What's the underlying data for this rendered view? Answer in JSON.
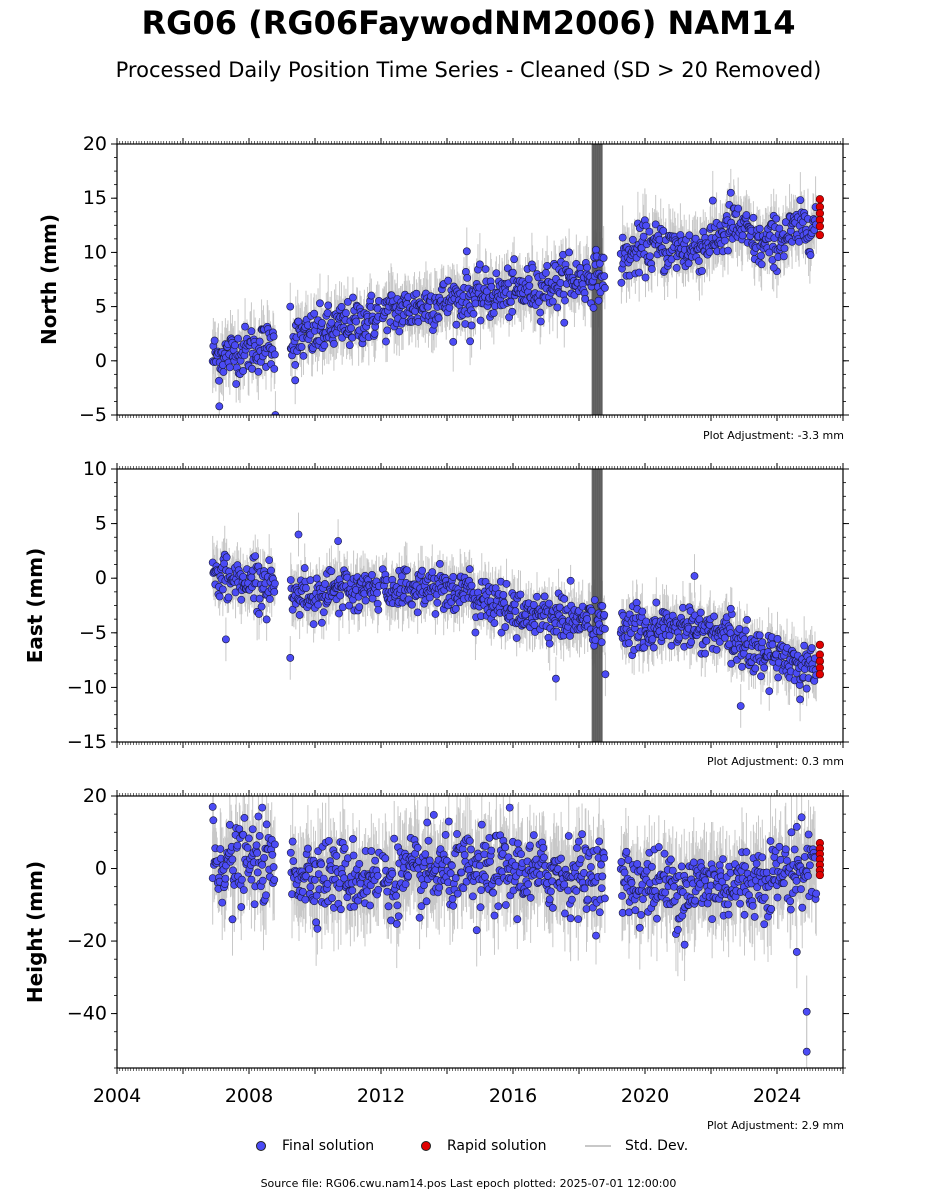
{
  "title": "RG06 (RG06FaywodNM2006) NAM14",
  "subtitle": "Processed Daily Position Time Series - Cleaned (SD > 20 Removed)",
  "legend": {
    "final": "Final solution",
    "rapid": "Rapid solution",
    "std": "Std. Dev."
  },
  "source": "Source file: RG06.cwu.nam14.pos  Last epoch plotted: 2025-07-01 12:00:00",
  "colors": {
    "final": "#4b4bf5",
    "rapid": "#e00000",
    "std_dev": "#c8c8c8",
    "dense_band": "#555555"
  },
  "chart_data": [
    {
      "type": "scatter",
      "ylabel": "North (mm)",
      "adjustment": "Plot Adjustment: -3.3 mm",
      "xlim": [
        2004,
        2026
      ],
      "ylim": [
        -5,
        20
      ],
      "yticks": [
        -5,
        0,
        5,
        10,
        15,
        20
      ],
      "xticks": [
        2004,
        2008,
        2012,
        2016,
        2020,
        2024
      ],
      "grid": false,
      "trend": [
        [
          2006.9,
          0.3
        ],
        [
          2008.8,
          1.5
        ],
        [
          2009.3,
          1.8
        ],
        [
          2012.0,
          4.2
        ],
        [
          2014.0,
          5.5
        ],
        [
          2016.0,
          6.3
        ],
        [
          2018.8,
          8.0
        ],
        [
          2019.3,
          9.2
        ],
        [
          2020.0,
          10.5
        ],
        [
          2021.5,
          10.2
        ],
        [
          2022.8,
          12.5
        ],
        [
          2023.5,
          10.5
        ],
        [
          2025.2,
          12.8
        ]
      ],
      "scatter_sd": 1.1,
      "gaps": [
        [
          2008.8,
          2009.25
        ],
        [
          2011.95,
          2012.05
        ],
        [
          2018.8,
          2019.25
        ]
      ],
      "outliers": [
        [
          2007.1,
          -4.2
        ],
        [
          2008.8,
          -5.0
        ],
        [
          2009.25,
          5.0
        ],
        [
          2009.4,
          -1.8
        ],
        [
          2014.6,
          10.1
        ],
        [
          2014.7,
          1.8
        ],
        [
          2022.6,
          15.5
        ],
        [
          2017.7,
          10.0
        ],
        [
          2023.9,
          8.6
        ]
      ],
      "rapid": [
        [
          2025.3,
          14.9
        ],
        [
          2025.3,
          14.2
        ],
        [
          2025.3,
          13.6
        ],
        [
          2025.3,
          13.0
        ],
        [
          2025.3,
          12.4
        ],
        [
          2025.3,
          11.6
        ]
      ]
    },
    {
      "type": "scatter",
      "ylabel": "East (mm)",
      "adjustment": "Plot Adjustment: 0.3 mm",
      "xlim": [
        2004,
        2026
      ],
      "ylim": [
        -15,
        10
      ],
      "yticks": [
        -15,
        -10,
        -5,
        0,
        5,
        10
      ],
      "xticks": [
        2004,
        2008,
        2012,
        2016,
        2020,
        2024
      ],
      "grid": false,
      "trend": [
        [
          2006.9,
          0.2
        ],
        [
          2008.8,
          -0.5
        ],
        [
          2009.3,
          -1.5
        ],
        [
          2012.0,
          -1.0
        ],
        [
          2014.0,
          -0.8
        ],
        [
          2016.0,
          -3.0
        ],
        [
          2018.8,
          -4.2
        ],
        [
          2019.3,
          -4.8
        ],
        [
          2021.0,
          -4.5
        ],
        [
          2022.0,
          -5.0
        ],
        [
          2023.5,
          -6.8
        ],
        [
          2025.2,
          -8.2
        ]
      ],
      "scatter_sd": 1.0,
      "gaps": [
        [
          2008.8,
          2009.25
        ],
        [
          2011.95,
          2012.05
        ],
        [
          2018.8,
          2019.25
        ]
      ],
      "outliers": [
        [
          2007.3,
          -5.6
        ],
        [
          2009.5,
          4.0
        ],
        [
          2009.25,
          -7.3
        ],
        [
          2010.7,
          3.4
        ],
        [
          2017.3,
          -9.2
        ],
        [
          2018.8,
          -8.8
        ],
        [
          2021.5,
          0.2
        ],
        [
          2022.9,
          -11.7
        ],
        [
          2024.7,
          -11.1
        ],
        [
          2022.6,
          -2.8
        ]
      ],
      "rapid": [
        [
          2025.3,
          -6.1
        ],
        [
          2025.3,
          -7.0
        ],
        [
          2025.3,
          -7.6
        ],
        [
          2025.3,
          -8.2
        ],
        [
          2025.3,
          -8.8
        ]
      ]
    },
    {
      "type": "scatter",
      "ylabel": "Height (mm)",
      "adjustment": "Plot Adjustment: 2.9 mm",
      "xlim": [
        2004,
        2026
      ],
      "ylim": [
        -55,
        20
      ],
      "yticks": [
        -40,
        -20,
        0,
        20
      ],
      "xticks": [
        2004,
        2008,
        2012,
        2016,
        2020,
        2024
      ],
      "xticklabels": [
        "2004",
        "2008",
        "2012",
        "2016",
        "2020",
        "2024"
      ],
      "grid": false,
      "trend": [
        [
          2006.9,
          2.0
        ],
        [
          2008.8,
          1.0
        ],
        [
          2009.3,
          -1.0
        ],
        [
          2012.0,
          -3.0
        ],
        [
          2014.0,
          -1.0
        ],
        [
          2016.0,
          -1.0
        ],
        [
          2018.8,
          -2.0
        ],
        [
          2019.3,
          -4.0
        ],
        [
          2021.0,
          -5.0
        ],
        [
          2023.0,
          -4.0
        ],
        [
          2025.2,
          1.0
        ]
      ],
      "scatter_sd": 5.0,
      "gaps": [
        [
          2008.8,
          2009.25
        ],
        [
          2011.95,
          2012.05
        ],
        [
          2018.8,
          2019.25
        ]
      ],
      "outliers": [
        [
          2006.9,
          17.0
        ],
        [
          2008.4,
          16.8
        ],
        [
          2007.5,
          -14.0
        ],
        [
          2014.9,
          -17.0
        ],
        [
          2015.9,
          16.8
        ],
        [
          2021.2,
          -21.0
        ],
        [
          2024.6,
          -23.0
        ],
        [
          2024.9,
          -39.5
        ],
        [
          2024.9,
          -50.5
        ],
        [
          2024.6,
          11.5
        ],
        [
          2013.6,
          14.8
        ]
      ],
      "rapid": [
        [
          2025.3,
          7.0
        ],
        [
          2025.3,
          5.5
        ],
        [
          2025.3,
          4.0
        ],
        [
          2025.3,
          2.5
        ],
        [
          2025.3,
          1.0
        ],
        [
          2025.3,
          -0.5
        ],
        [
          2025.3,
          -1.8
        ]
      ]
    }
  ]
}
